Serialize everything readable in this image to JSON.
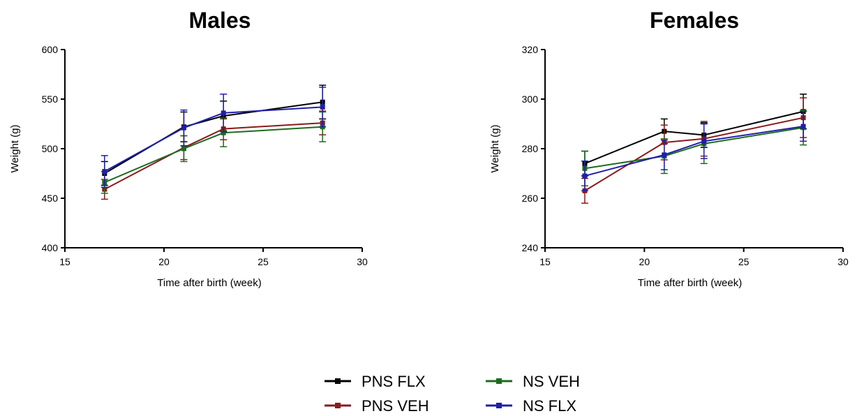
{
  "chart_data": [
    {
      "type": "line",
      "title": "Males",
      "xlabel": "Time after birth (week)",
      "ylabel": "Weight (g)",
      "xlim": [
        15,
        30
      ],
      "ylim": [
        400,
        600
      ],
      "xticks": [
        "15",
        "20",
        "25",
        "30"
      ],
      "yticks": [
        "400",
        "450",
        "500",
        "550",
        "600"
      ],
      "x": [
        17,
        21,
        23,
        28
      ],
      "series": [
        {
          "name": "PNS FLX",
          "color": "#000000",
          "values": [
            475,
            522,
            533,
            547
          ],
          "errors": [
            12,
            15,
            15,
            17
          ]
        },
        {
          "name": "PNS VEH",
          "color": "#8b1a1a",
          "values": [
            459,
            501,
            520,
            526
          ],
          "errors": [
            10,
            12,
            11,
            12
          ]
        },
        {
          "name": "NS VEH",
          "color": "#1e6b1e",
          "values": [
            466,
            500,
            516,
            522
          ],
          "errors": [
            11,
            13,
            14,
            15
          ]
        },
        {
          "name": "NS FLX",
          "color": "#1f1fa8",
          "values": [
            477,
            521,
            536,
            542
          ],
          "errors": [
            16,
            18,
            19,
            20
          ]
        }
      ]
    },
    {
      "type": "line",
      "title": "Females",
      "xlabel": "Time after birth (week)",
      "ylabel": "Weight (g)",
      "xlim": [
        15,
        30
      ],
      "ylim": [
        240,
        320
      ],
      "xticks": [
        "15",
        "20",
        "25",
        "30"
      ],
      "yticks": [
        "240",
        "260",
        "280",
        "300",
        "320"
      ],
      "x": [
        17,
        21,
        23,
        28
      ],
      "series": [
        {
          "name": "PNS FLX",
          "color": "#000000",
          "values": [
            274,
            287,
            285.5,
            295
          ],
          "errors": [
            5,
            5,
            5,
            7
          ]
        },
        {
          "name": "PNS VEH",
          "color": "#8b1a1a",
          "values": [
            263,
            282.5,
            284,
            292.5
          ],
          "errors": [
            5,
            7,
            7,
            8
          ]
        },
        {
          "name": "NS VEH",
          "color": "#1e6b1e",
          "values": [
            272,
            277,
            282,
            288.5
          ],
          "errors": [
            7,
            7,
            8,
            7
          ]
        },
        {
          "name": "NS FLX",
          "color": "#1f1fa8",
          "values": [
            269,
            277.5,
            283,
            289
          ],
          "errors": [
            6,
            6,
            7,
            6
          ]
        }
      ]
    }
  ],
  "legend": [
    {
      "label": "PNS FLX",
      "color": "#000000"
    },
    {
      "label": "NS VEH",
      "color": "#1e6b1e"
    },
    {
      "label": "PNS VEH",
      "color": "#8b1a1a"
    },
    {
      "label": "NS FLX",
      "color": "#1f1fa8"
    }
  ]
}
